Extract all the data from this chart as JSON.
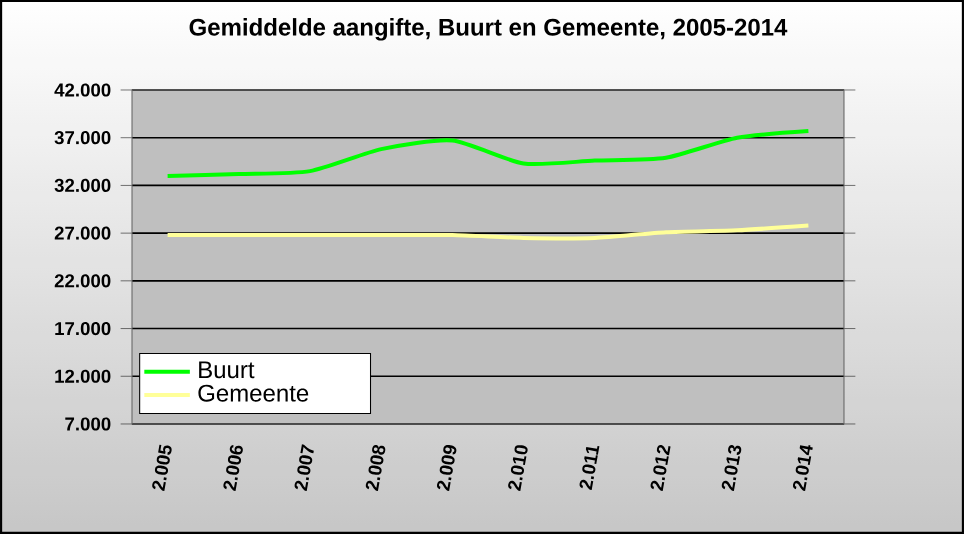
{
  "chart_data": {
    "type": "line",
    "title": "Gemiddelde aangifte, Buurt en Gemeente, 2005-2014",
    "categories": [
      "2.005",
      "2.006",
      "2.007",
      "2.008",
      "2.009",
      "2.010",
      "2.011",
      "2.012",
      "2.013",
      "2.014"
    ],
    "series": [
      {
        "name": "Buurt",
        "color": "#00ff00",
        "values": [
          33000,
          33200,
          33500,
          35800,
          36700,
          34300,
          34600,
          34900,
          37000,
          37700
        ]
      },
      {
        "name": "Gemeente",
        "color": "#ffff99",
        "values": [
          26800,
          26800,
          26800,
          26800,
          26800,
          26500,
          26500,
          27100,
          27300,
          27800
        ]
      }
    ],
    "ylim": [
      7000,
      42000
    ],
    "yticks": [
      {
        "value": 7000,
        "label": "7.000"
      },
      {
        "value": 12000,
        "label": "12.000"
      },
      {
        "value": 17000,
        "label": "17.000"
      },
      {
        "value": 22000,
        "label": "22.000"
      },
      {
        "value": 27000,
        "label": "27.000"
      },
      {
        "value": 32000,
        "label": "32.000"
      },
      {
        "value": 37000,
        "label": "37.000"
      },
      {
        "value": 42000,
        "label": "42.000"
      }
    ],
    "grid": "y",
    "legend": "bottom left",
    "marker": "none",
    "line_style": "solid"
  }
}
